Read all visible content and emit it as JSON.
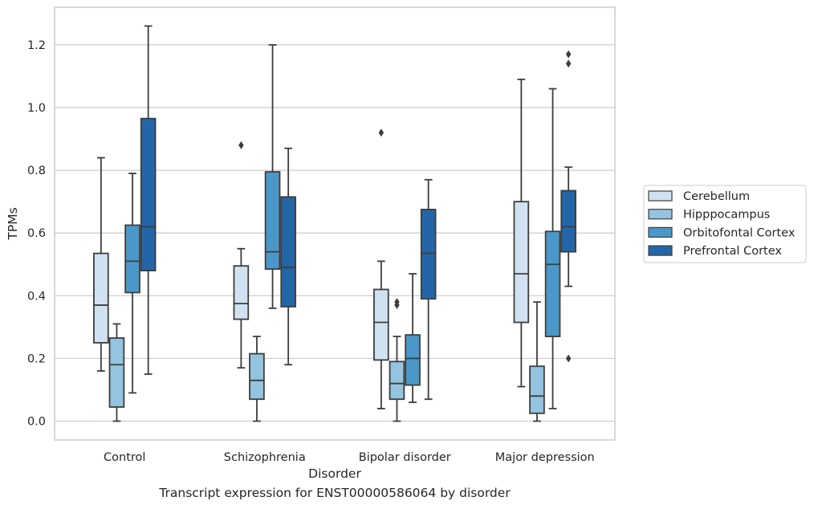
{
  "caption": "Transcript expression for ENST00000586064 by disorder",
  "chart_data": {
    "type": "box",
    "xlabel": "Disorder",
    "ylabel": "TPMs",
    "ylim": [
      -0.06,
      1.32
    ],
    "yticks": [
      0.0,
      0.2,
      0.4,
      0.6,
      0.8,
      1.0,
      1.2
    ],
    "ytick_labels": [
      "0.0",
      "0.2",
      "0.4",
      "0.6",
      "0.8",
      "1.0",
      "1.2"
    ],
    "grid": "horizontal",
    "legend_position": "right",
    "categories": [
      "Control",
      "Schizophrenia",
      "Bipolar disorder",
      "Major depression"
    ],
    "series": [
      {
        "name": "Cerebellum",
        "color": "#d0e1f2",
        "boxes": [
          {
            "whisker_low": 0.16,
            "q1": 0.25,
            "median": 0.37,
            "q3": 0.535,
            "whisker_high": 0.84,
            "outliers": []
          },
          {
            "whisker_low": 0.17,
            "q1": 0.325,
            "median": 0.375,
            "q3": 0.495,
            "whisker_high": 0.55,
            "outliers": [
              0.88
            ]
          },
          {
            "whisker_low": 0.04,
            "q1": 0.195,
            "median": 0.315,
            "q3": 0.42,
            "whisker_high": 0.51,
            "outliers": [
              0.92
            ]
          },
          {
            "whisker_low": 0.11,
            "q1": 0.315,
            "median": 0.47,
            "q3": 0.7,
            "whisker_high": 1.09,
            "outliers": []
          }
        ]
      },
      {
        "name": "Hipppocampus",
        "color": "#94c4df",
        "boxes": [
          {
            "whisker_low": 0.0,
            "q1": 0.045,
            "median": 0.18,
            "q3": 0.265,
            "whisker_high": 0.31,
            "outliers": []
          },
          {
            "whisker_low": 0.0,
            "q1": 0.07,
            "median": 0.13,
            "q3": 0.215,
            "whisker_high": 0.27,
            "outliers": []
          },
          {
            "whisker_low": 0.0,
            "q1": 0.07,
            "median": 0.12,
            "q3": 0.19,
            "whisker_high": 0.27,
            "outliers": [
              0.37,
              0.38
            ]
          },
          {
            "whisker_low": 0.0,
            "q1": 0.025,
            "median": 0.08,
            "q3": 0.175,
            "whisker_high": 0.38,
            "outliers": []
          }
        ]
      },
      {
        "name": "Orbitofontal Cortex",
        "color": "#4a98c9",
        "boxes": [
          {
            "whisker_low": 0.09,
            "q1": 0.41,
            "median": 0.51,
            "q3": 0.625,
            "whisker_high": 0.79,
            "outliers": []
          },
          {
            "whisker_low": 0.36,
            "q1": 0.485,
            "median": 0.54,
            "q3": 0.795,
            "whisker_high": 1.2,
            "outliers": []
          },
          {
            "whisker_low": 0.06,
            "q1": 0.115,
            "median": 0.2,
            "q3": 0.275,
            "whisker_high": 0.47,
            "outliers": []
          },
          {
            "whisker_low": 0.04,
            "q1": 0.27,
            "median": 0.5,
            "q3": 0.605,
            "whisker_high": 1.06,
            "outliers": []
          }
        ]
      },
      {
        "name": "Prefrontal Cortex",
        "color": "#2366a8",
        "boxes": [
          {
            "whisker_low": 0.15,
            "q1": 0.48,
            "median": 0.62,
            "q3": 0.965,
            "whisker_high": 1.26,
            "outliers": []
          },
          {
            "whisker_low": 0.18,
            "q1": 0.365,
            "median": 0.49,
            "q3": 0.715,
            "whisker_high": 0.87,
            "outliers": []
          },
          {
            "whisker_low": 0.07,
            "q1": 0.39,
            "median": 0.535,
            "q3": 0.675,
            "whisker_high": 0.77,
            "outliers": []
          },
          {
            "whisker_low": 0.43,
            "q1": 0.54,
            "median": 0.62,
            "q3": 0.735,
            "whisker_high": 0.81,
            "outliers": [
              0.2,
              1.14,
              1.17
            ]
          }
        ]
      }
    ]
  }
}
